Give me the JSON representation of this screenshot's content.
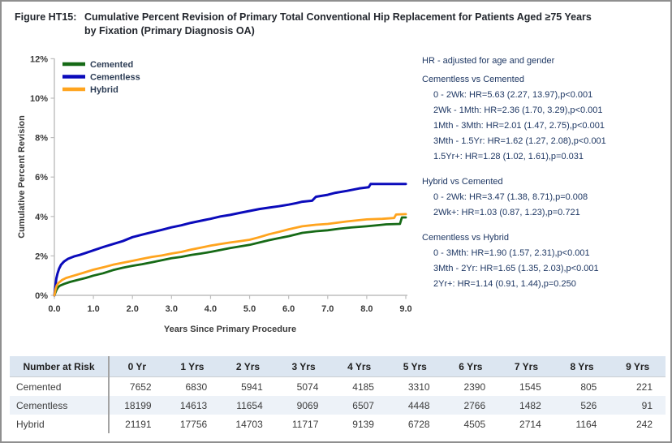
{
  "title": {
    "label": "Figure HT15:",
    "text": "Cumulative Percent Revision of Primary Total Conventional Hip Replacement for Patients Aged ≥75 Years by Fixation (Primary Diagnosis OA)"
  },
  "chart_data": {
    "type": "line",
    "xlabel": "Years Since Primary Procedure",
    "ylabel": "Cumulative Percent Revision",
    "xlim": [
      0,
      9
    ],
    "ylim": [
      0,
      12
    ],
    "xticks": [
      "0.0",
      "1.0",
      "2.0",
      "3.0",
      "4.0",
      "5.0",
      "6.0",
      "7.0",
      "8.0",
      "9.0"
    ],
    "yticks": [
      "0%",
      "2%",
      "4%",
      "6%",
      "8%",
      "10%",
      "12%"
    ],
    "grid": false,
    "legend_position": "top-left",
    "series": [
      {
        "name": "Cemented",
        "color": "#166a16",
        "points": [
          [
            0,
            0
          ],
          [
            0.03,
            0.15
          ],
          [
            0.06,
            0.3
          ],
          [
            0.1,
            0.42
          ],
          [
            0.15,
            0.5
          ],
          [
            0.25,
            0.58
          ],
          [
            0.4,
            0.68
          ],
          [
            0.6,
            0.78
          ],
          [
            0.8,
            0.88
          ],
          [
            1.0,
            1.0
          ],
          [
            1.25,
            1.12
          ],
          [
            1.5,
            1.28
          ],
          [
            1.75,
            1.4
          ],
          [
            2.0,
            1.5
          ],
          [
            2.25,
            1.58
          ],
          [
            2.5,
            1.68
          ],
          [
            2.75,
            1.78
          ],
          [
            3.0,
            1.88
          ],
          [
            3.25,
            1.95
          ],
          [
            3.5,
            2.05
          ],
          [
            3.75,
            2.12
          ],
          [
            4.0,
            2.2
          ],
          [
            4.25,
            2.3
          ],
          [
            4.5,
            2.4
          ],
          [
            4.75,
            2.48
          ],
          [
            5.0,
            2.56
          ],
          [
            5.25,
            2.68
          ],
          [
            5.5,
            2.8
          ],
          [
            5.75,
            2.9
          ],
          [
            6.0,
            3.0
          ],
          [
            6.35,
            3.17
          ],
          [
            6.7,
            3.25
          ],
          [
            7.0,
            3.3
          ],
          [
            7.3,
            3.38
          ],
          [
            7.6,
            3.44
          ],
          [
            8.0,
            3.5
          ],
          [
            8.3,
            3.56
          ],
          [
            8.5,
            3.6
          ],
          [
            8.85,
            3.62
          ],
          [
            8.9,
            3.95
          ],
          [
            9.0,
            3.95
          ]
        ]
      },
      {
        "name": "Cementless",
        "color": "#0b0bbb",
        "points": [
          [
            0,
            0
          ],
          [
            0.02,
            0.4
          ],
          [
            0.05,
            0.85
          ],
          [
            0.08,
            1.1
          ],
          [
            0.12,
            1.35
          ],
          [
            0.17,
            1.55
          ],
          [
            0.25,
            1.72
          ],
          [
            0.35,
            1.85
          ],
          [
            0.5,
            1.97
          ],
          [
            0.65,
            2.05
          ],
          [
            0.8,
            2.15
          ],
          [
            1.0,
            2.28
          ],
          [
            1.25,
            2.45
          ],
          [
            1.5,
            2.6
          ],
          [
            1.75,
            2.75
          ],
          [
            2.0,
            2.95
          ],
          [
            2.25,
            3.08
          ],
          [
            2.5,
            3.2
          ],
          [
            2.75,
            3.32
          ],
          [
            3.0,
            3.45
          ],
          [
            3.25,
            3.55
          ],
          [
            3.5,
            3.68
          ],
          [
            3.75,
            3.78
          ],
          [
            4.0,
            3.88
          ],
          [
            4.25,
            4.0
          ],
          [
            4.5,
            4.08
          ],
          [
            4.75,
            4.18
          ],
          [
            5.0,
            4.28
          ],
          [
            5.25,
            4.38
          ],
          [
            5.5,
            4.45
          ],
          [
            5.75,
            4.52
          ],
          [
            6.0,
            4.6
          ],
          [
            6.2,
            4.68
          ],
          [
            6.35,
            4.75
          ],
          [
            6.6,
            4.8
          ],
          [
            6.7,
            5.0
          ],
          [
            7.0,
            5.1
          ],
          [
            7.2,
            5.2
          ],
          [
            7.5,
            5.3
          ],
          [
            7.8,
            5.42
          ],
          [
            8.05,
            5.48
          ],
          [
            8.1,
            5.65
          ],
          [
            9.0,
            5.65
          ]
        ]
      },
      {
        "name": "Hybrid",
        "color": "#ffa41e",
        "points": [
          [
            0,
            0
          ],
          [
            0.03,
            0.3
          ],
          [
            0.06,
            0.5
          ],
          [
            0.1,
            0.62
          ],
          [
            0.2,
            0.78
          ],
          [
            0.3,
            0.88
          ],
          [
            0.5,
            1.0
          ],
          [
            0.75,
            1.15
          ],
          [
            1.0,
            1.3
          ],
          [
            1.25,
            1.42
          ],
          [
            1.5,
            1.55
          ],
          [
            1.75,
            1.65
          ],
          [
            2.0,
            1.75
          ],
          [
            2.25,
            1.85
          ],
          [
            2.5,
            1.95
          ],
          [
            2.75,
            2.02
          ],
          [
            3.0,
            2.12
          ],
          [
            3.25,
            2.2
          ],
          [
            3.5,
            2.32
          ],
          [
            3.75,
            2.42
          ],
          [
            4.0,
            2.52
          ],
          [
            4.25,
            2.6
          ],
          [
            4.5,
            2.68
          ],
          [
            4.75,
            2.75
          ],
          [
            5.0,
            2.82
          ],
          [
            5.25,
            2.95
          ],
          [
            5.5,
            3.1
          ],
          [
            5.75,
            3.22
          ],
          [
            6.0,
            3.35
          ],
          [
            6.35,
            3.5
          ],
          [
            6.7,
            3.58
          ],
          [
            7.0,
            3.62
          ],
          [
            7.5,
            3.75
          ],
          [
            8.0,
            3.85
          ],
          [
            8.4,
            3.88
          ],
          [
            8.7,
            3.92
          ],
          [
            8.75,
            4.1
          ],
          [
            9.0,
            4.12
          ]
        ]
      }
    ]
  },
  "hr_panel": {
    "heading": "HR - adjusted for age and gender",
    "groups": [
      {
        "title": "Cementless vs Cemented",
        "lines": [
          "0 - 2Wk: HR=5.63 (2.27, 13.97),p<0.001",
          "2Wk - 1Mth: HR=2.36 (1.70, 3.29),p<0.001",
          "1Mth - 3Mth: HR=2.01 (1.47, 2.75),p<0.001",
          "3Mth - 1.5Yr: HR=1.62 (1.27, 2.08),p<0.001",
          "1.5Yr+: HR=1.28 (1.02, 1.61),p=0.031"
        ]
      },
      {
        "title": "Hybrid vs Cemented",
        "lines": [
          "0 - 2Wk: HR=3.47 (1.38, 8.71),p=0.008",
          "2Wk+: HR=1.03 (0.87, 1.23),p=0.721"
        ]
      },
      {
        "title": "Cementless vs Hybrid",
        "lines": [
          "0 - 3Mth: HR=1.90 (1.57, 2.31),p<0.001",
          "3Mth - 2Yr: HR=1.65 (1.35, 2.03),p<0.001",
          "2Yr+: HR=1.14 (0.91, 1.44),p=0.250"
        ]
      }
    ]
  },
  "risk_table": {
    "header": [
      "Number at Risk",
      "0 Yr",
      "1 Yrs",
      "2 Yrs",
      "3 Yrs",
      "4 Yrs",
      "5 Yrs",
      "6 Yrs",
      "7 Yrs",
      "8 Yrs",
      "9 Yrs"
    ],
    "rows": [
      {
        "label": "Cemented",
        "values": [
          "7652",
          "6830",
          "5941",
          "5074",
          "4185",
          "3310",
          "2390",
          "1545",
          "805",
          "221"
        ]
      },
      {
        "label": "Cementless",
        "values": [
          "18199",
          "14613",
          "11654",
          "9069",
          "6507",
          "4448",
          "2766",
          "1482",
          "526",
          "91"
        ]
      },
      {
        "label": "Hybrid",
        "values": [
          "21191",
          "17756",
          "14703",
          "11717",
          "9139",
          "6728",
          "4505",
          "2714",
          "1164",
          "242"
        ]
      }
    ]
  }
}
